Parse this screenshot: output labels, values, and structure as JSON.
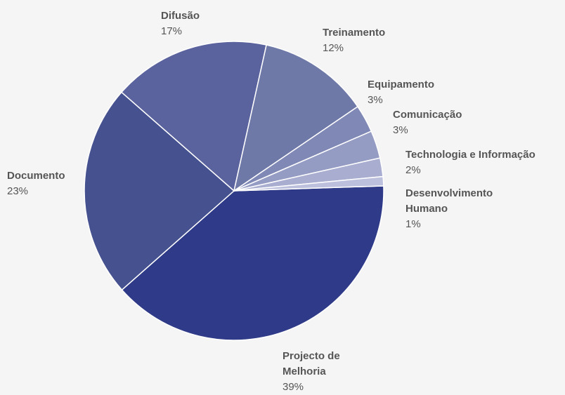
{
  "chart_data": {
    "type": "pie",
    "categories": [
      "Projecto de Melhoria",
      "Documento",
      "Difusão",
      "Treinamento",
      "Equipamento",
      "Comunicação",
      "Technologia e Informação",
      "Desenvolvimento Humano"
    ],
    "values": [
      39,
      23,
      17,
      12,
      3,
      3,
      2,
      1
    ],
    "value_labels": [
      "39%",
      "23%",
      "17%",
      "12%",
      "3%",
      "3%",
      "2%",
      "1%"
    ],
    "colors": [
      "#2f3b88",
      "#46518f",
      "#5a639d",
      "#6f79a8",
      "#8088b6",
      "#959cc4",
      "#a9aed1",
      "#bcc0dd"
    ]
  }
}
